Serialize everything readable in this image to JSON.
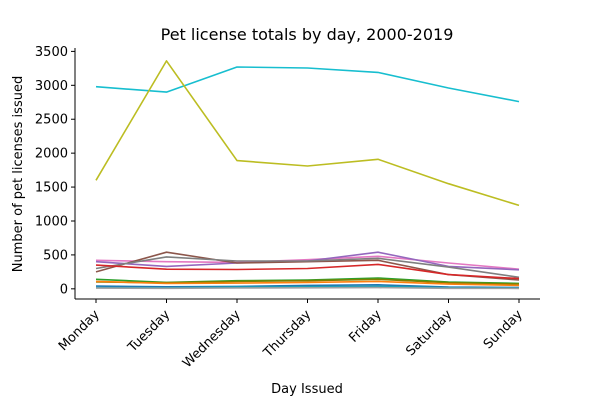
{
  "chart_data": {
    "type": "line",
    "title": "Pet license totals by day, 2000-2019",
    "xlabel": "Day Issued",
    "ylabel": "Number of pet licenses issued",
    "categories": [
      "Monday",
      "Tuesday",
      "Wednesday",
      "Thursday",
      "Friday",
      "Saturday",
      "Sunday"
    ],
    "ylim": [
      -150,
      3550
    ],
    "yticks": [
      0,
      500,
      1000,
      1500,
      2000,
      2500,
      3000,
      3500
    ],
    "grid": false,
    "series": [
      {
        "color": "#17becf",
        "values": [
          2980,
          2900,
          3270,
          3255,
          3190,
          2960,
          2760
        ]
      },
      {
        "color": "#bcbd22",
        "values": [
          1600,
          3360,
          1890,
          1810,
          1910,
          1550,
          1230
        ]
      },
      {
        "color": "#e377c2",
        "values": [
          420,
          400,
          390,
          430,
          480,
          380,
          290
        ]
      },
      {
        "color": "#9467bd",
        "values": [
          400,
          330,
          380,
          410,
          540,
          330,
          280
        ]
      },
      {
        "color": "#8c564b",
        "values": [
          250,
          540,
          380,
          400,
          420,
          210,
          130
        ]
      },
      {
        "color": "#7f7f7f",
        "values": [
          300,
          470,
          410,
          410,
          450,
          320,
          170
        ]
      },
      {
        "color": "#d62728",
        "values": [
          350,
          290,
          285,
          300,
          360,
          210,
          150
        ]
      },
      {
        "color": "#2ca02c",
        "values": [
          140,
          95,
          120,
          130,
          160,
          100,
          80
        ]
      },
      {
        "color": "#808000",
        "values": [
          100,
          90,
          110,
          120,
          140,
          90,
          70
        ]
      },
      {
        "color": "#ff7f0e",
        "values": [
          110,
          80,
          85,
          95,
          110,
          70,
          50
        ]
      },
      {
        "color": "#1f77b4",
        "values": [
          40,
          30,
          35,
          50,
          60,
          25,
          20
        ]
      },
      {
        "color": "#17a2b8",
        "values": [
          20,
          15,
          25,
          30,
          35,
          15,
          12
        ]
      },
      {
        "color": "#9ea0a4",
        "values": [
          10,
          8,
          12,
          15,
          18,
          8,
          6
        ]
      }
    ]
  }
}
